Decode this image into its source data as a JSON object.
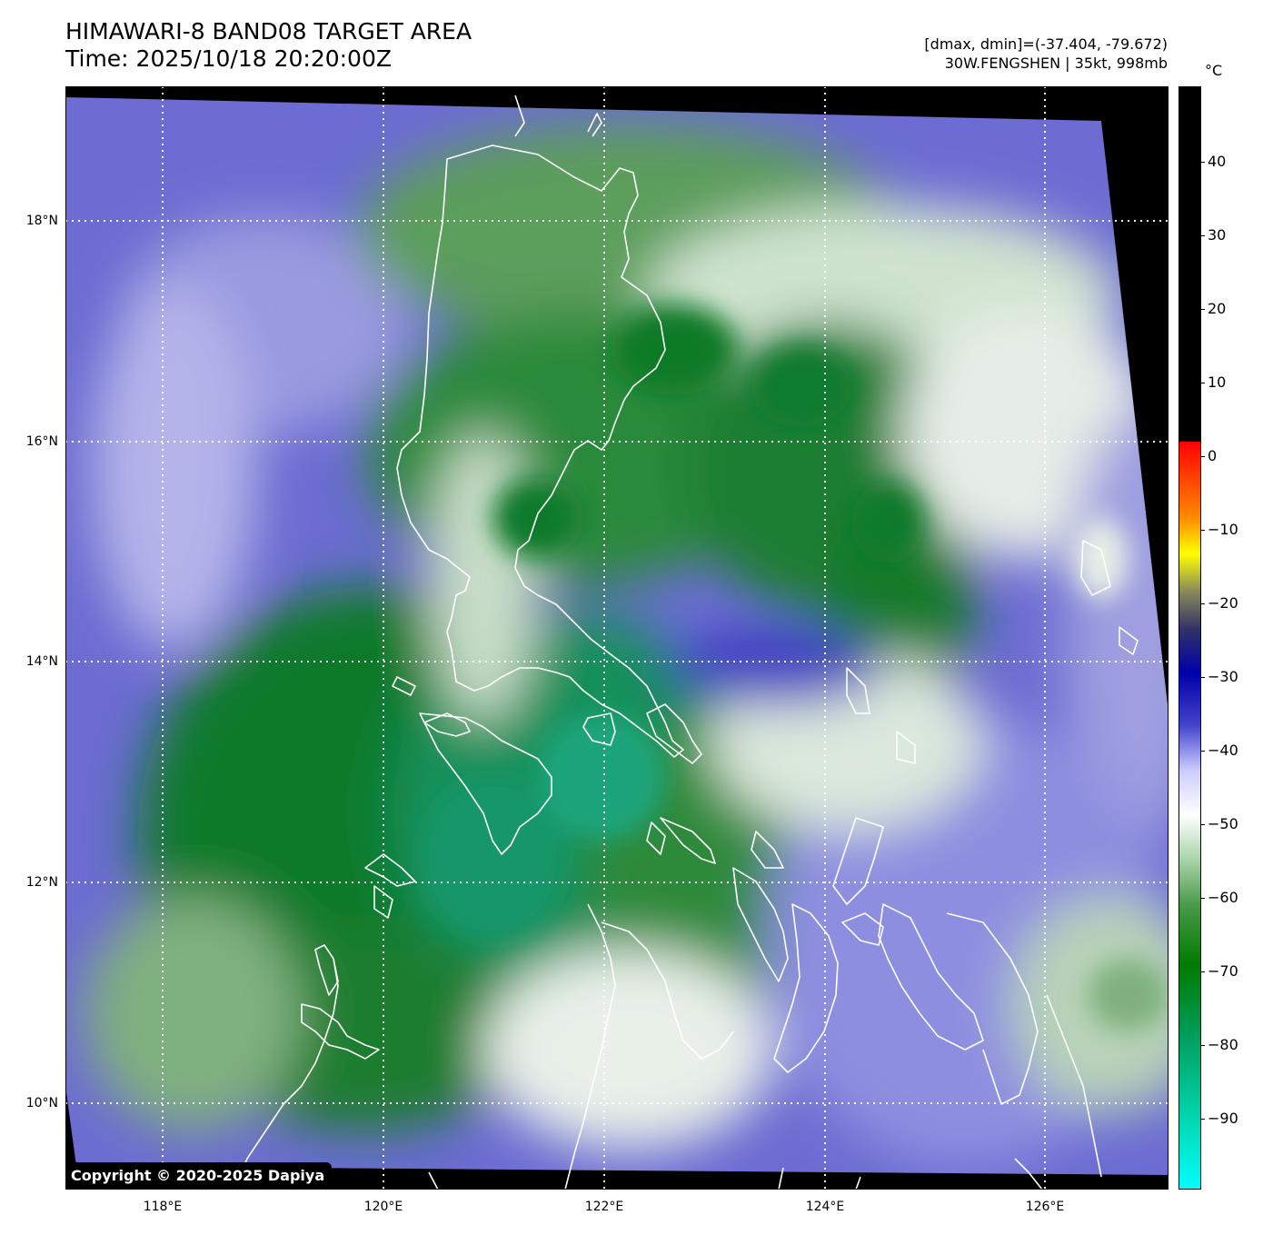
{
  "title": {
    "line1": "HIMAWARI-8 BAND08 TARGET AREA",
    "line2": "Time: 2025/10/18 20:20:00Z"
  },
  "info": {
    "range": "[dmax, dmin]=(-37.404, -79.672)",
    "storm": "30W.FENGSHEN | 35kt, 998mb"
  },
  "copyright": "Copyright © 2020-2025 Dapiya",
  "axes": {
    "lat_labels": [
      "18°N",
      "16°N",
      "14°N",
      "12°N",
      "10°N"
    ],
    "lon_labels": [
      "118°E",
      "120°E",
      "122°E",
      "124°E",
      "126°E"
    ]
  },
  "colorbar": {
    "unit": "°C",
    "labels": [
      "40",
      "30",
      "20",
      "10",
      "0",
      "−10",
      "−20",
      "−30",
      "−40",
      "−50",
      "−60",
      "−70",
      "−80",
      "−90"
    ]
  },
  "colors": {
    "cloud_green": "#0a7a2a",
    "cold_teal": "#19a27a",
    "dry_blue": "#6a6ad0",
    "mid_white": "#f2f5f0",
    "coastline": "#ffffff"
  }
}
